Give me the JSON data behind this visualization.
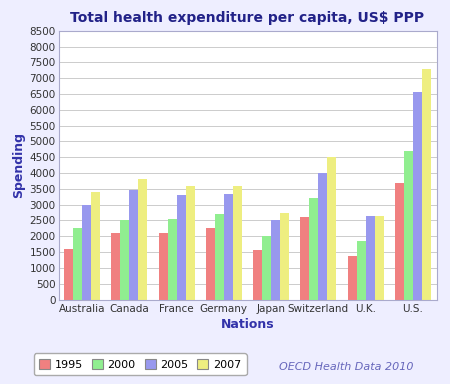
{
  "title": "Total health expenditure per capita, US$ PPP",
  "xlabel": "Nations",
  "ylabel": "Spending",
  "nations": [
    "Australia",
    "Canada",
    "France",
    "Germany",
    "Japan",
    "Switzerland",
    "U.K.",
    "U.S."
  ],
  "years": [
    "1995",
    "2000",
    "2005",
    "2007"
  ],
  "values": {
    "1995": [
      1600,
      2100,
      2100,
      2250,
      1575,
      2600,
      1375,
      3700
    ],
    "2000": [
      2250,
      2525,
      2550,
      2700,
      2000,
      3200,
      1850,
      4700
    ],
    "2005": [
      3000,
      3475,
      3300,
      3350,
      2500,
      4000,
      2650,
      6550
    ],
    "2007": [
      3400,
      3825,
      3600,
      3600,
      2725,
      4500,
      2650,
      7300
    ]
  },
  "colors": {
    "1995": "#F08080",
    "2000": "#90EE90",
    "2005": "#9898EE",
    "2007": "#EEEE80"
  },
  "ylim": [
    0,
    8500
  ],
  "yticks": [
    0,
    500,
    1000,
    1500,
    2000,
    2500,
    3000,
    3500,
    4000,
    4500,
    5000,
    5500,
    6000,
    6500,
    7000,
    7500,
    8000,
    8500
  ],
  "bg_color": "#eeeeff",
  "plot_bg_color": "#ffffff",
  "border_color": "#aaaacc",
  "annotation": "OECD Health Data 2010",
  "annotation_color": "#6666bb",
  "title_color": "#222288",
  "axis_label_color": "#3333aa",
  "tick_color": "#333333",
  "grid_color": "#cccccc",
  "bar_width": 0.19,
  "title_fontsize": 10,
  "label_fontsize": 9,
  "tick_fontsize": 7.5,
  "legend_fontsize": 8
}
